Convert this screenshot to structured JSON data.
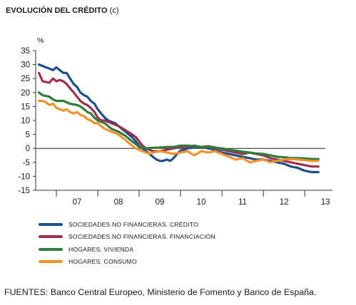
{
  "title": "EVOLUCIÓN DEL CRÉDITO",
  "title_note": "(c)",
  "source": "FUENTES: Banco Central Europeo, Ministerio de Fomento y Banco de España.",
  "chart_data": {
    "type": "line",
    "ylabel": "%",
    "ylim": [
      -15,
      35
    ],
    "yticks": [
      35,
      30,
      25,
      20,
      15,
      10,
      5,
      0,
      -5,
      -10,
      -15
    ],
    "xlim": [
      2006.5,
      2013.67
    ],
    "xtick_labels": [
      "07",
      "08",
      "09",
      "10",
      "11",
      "12",
      "13"
    ],
    "grid": false,
    "legend_position": "bottom",
    "series": [
      {
        "name": "SOCIEDADES NO FINANCIERAS. CRÉDITO",
        "color": "#1f4e8c",
        "points": [
          [
            2006.58,
            30
          ],
          [
            2006.75,
            29
          ],
          [
            2006.92,
            28
          ],
          [
            2007.0,
            29
          ],
          [
            2007.08,
            28
          ],
          [
            2007.17,
            27
          ],
          [
            2007.25,
            27
          ],
          [
            2007.33,
            25
          ],
          [
            2007.42,
            23
          ],
          [
            2007.5,
            22
          ],
          [
            2007.58,
            20
          ],
          [
            2007.67,
            19
          ],
          [
            2007.75,
            18.5
          ],
          [
            2007.83,
            17
          ],
          [
            2007.92,
            16
          ],
          [
            2008.0,
            14
          ],
          [
            2008.08,
            12.5
          ],
          [
            2008.17,
            11
          ],
          [
            2008.25,
            10
          ],
          [
            2008.33,
            9.5
          ],
          [
            2008.42,
            9
          ],
          [
            2008.5,
            8
          ],
          [
            2008.58,
            7
          ],
          [
            2008.67,
            6
          ],
          [
            2008.75,
            5
          ],
          [
            2008.83,
            4
          ],
          [
            2008.92,
            2.5
          ],
          [
            2009.0,
            1
          ],
          [
            2009.08,
            0
          ],
          [
            2009.17,
            -1
          ],
          [
            2009.25,
            -2
          ],
          [
            2009.33,
            -3
          ],
          [
            2009.42,
            -4
          ],
          [
            2009.5,
            -4.5
          ],
          [
            2009.58,
            -4.5
          ],
          [
            2009.67,
            -4
          ],
          [
            2009.75,
            -4.5
          ],
          [
            2009.83,
            -3.5
          ],
          [
            2009.92,
            -2
          ],
          [
            2010.0,
            -0.8
          ],
          [
            2010.17,
            0
          ],
          [
            2010.33,
            0.3
          ],
          [
            2010.5,
            0.5
          ],
          [
            2010.67,
            0
          ],
          [
            2010.83,
            -0.5
          ],
          [
            2011.0,
            -1.5
          ],
          [
            2011.17,
            -2
          ],
          [
            2011.33,
            -2.5
          ],
          [
            2011.5,
            -3
          ],
          [
            2011.67,
            -3.5
          ],
          [
            2011.83,
            -4
          ],
          [
            2012.0,
            -4
          ],
          [
            2012.17,
            -4.5
          ],
          [
            2012.33,
            -5
          ],
          [
            2012.5,
            -5.5
          ],
          [
            2012.67,
            -6.5
          ],
          [
            2012.83,
            -7
          ],
          [
            2013.0,
            -8
          ],
          [
            2013.17,
            -8.5
          ],
          [
            2013.33,
            -8.5
          ]
        ]
      },
      {
        "name": "SOCIEDADES NO FINANCIERAS. FINANCIACIÓN",
        "color": "#a0304a",
        "points": [
          [
            2006.58,
            27
          ],
          [
            2006.67,
            24
          ],
          [
            2006.83,
            23.5
          ],
          [
            2006.92,
            25
          ],
          [
            2007.0,
            24
          ],
          [
            2007.08,
            24.5
          ],
          [
            2007.17,
            24
          ],
          [
            2007.25,
            23
          ],
          [
            2007.33,
            21.5
          ],
          [
            2007.42,
            20
          ],
          [
            2007.5,
            18.5
          ],
          [
            2007.58,
            17
          ],
          [
            2007.67,
            16
          ],
          [
            2007.75,
            15.5
          ],
          [
            2007.83,
            14.5
          ],
          [
            2007.92,
            13
          ],
          [
            2008.0,
            11
          ],
          [
            2008.08,
            10
          ],
          [
            2008.17,
            10
          ],
          [
            2008.25,
            9.5
          ],
          [
            2008.33,
            9
          ],
          [
            2008.5,
            8
          ],
          [
            2008.67,
            6.5
          ],
          [
            2008.83,
            5
          ],
          [
            2008.92,
            4
          ],
          [
            2009.0,
            2.5
          ],
          [
            2009.08,
            1
          ],
          [
            2009.17,
            0
          ],
          [
            2009.25,
            -0.5
          ],
          [
            2009.33,
            -1
          ],
          [
            2009.5,
            -1
          ],
          [
            2009.67,
            -0.5
          ],
          [
            2009.83,
            0
          ],
          [
            2010.0,
            0.5
          ],
          [
            2010.17,
            0.5
          ],
          [
            2010.33,
            1
          ],
          [
            2010.5,
            0.5
          ],
          [
            2010.67,
            0.8
          ],
          [
            2010.83,
            0.3
          ],
          [
            2011.0,
            -0.5
          ],
          [
            2011.17,
            -1
          ],
          [
            2011.33,
            -1.5
          ],
          [
            2011.5,
            -2
          ],
          [
            2011.67,
            -1.5
          ],
          [
            2011.83,
            -2
          ],
          [
            2012.0,
            -2.5
          ],
          [
            2012.17,
            -3.5
          ],
          [
            2012.33,
            -4
          ],
          [
            2012.5,
            -4.5
          ],
          [
            2012.67,
            -5
          ],
          [
            2012.83,
            -5.5
          ],
          [
            2013.0,
            -6
          ],
          [
            2013.17,
            -6.5
          ],
          [
            2013.33,
            -6.5
          ]
        ]
      },
      {
        "name": "HOGARES. VIVIENDA",
        "color": "#2e7d3e",
        "points": [
          [
            2006.58,
            20
          ],
          [
            2006.67,
            19
          ],
          [
            2006.83,
            18.5
          ],
          [
            2006.92,
            17.5
          ],
          [
            2007.0,
            17
          ],
          [
            2007.17,
            17
          ],
          [
            2007.33,
            16
          ],
          [
            2007.5,
            15.5
          ],
          [
            2007.58,
            15
          ],
          [
            2007.67,
            14
          ],
          [
            2007.75,
            13
          ],
          [
            2007.83,
            12.5
          ],
          [
            2007.92,
            11
          ],
          [
            2008.0,
            10
          ],
          [
            2008.08,
            9.5
          ],
          [
            2008.17,
            9
          ],
          [
            2008.25,
            8
          ],
          [
            2008.33,
            7
          ],
          [
            2008.5,
            6
          ],
          [
            2008.67,
            4.5
          ],
          [
            2008.75,
            3.5
          ],
          [
            2008.83,
            2.5
          ],
          [
            2008.92,
            1.5
          ],
          [
            2009.0,
            0.5
          ],
          [
            2009.17,
            0
          ],
          [
            2009.33,
            0.2
          ],
          [
            2009.5,
            0.3
          ],
          [
            2009.67,
            0.5
          ],
          [
            2009.83,
            0.5
          ],
          [
            2010.0,
            1
          ],
          [
            2010.17,
            1
          ],
          [
            2010.33,
            0.8
          ],
          [
            2010.5,
            0.5
          ],
          [
            2010.67,
            0.5
          ],
          [
            2010.83,
            0.3
          ],
          [
            2011.0,
            0
          ],
          [
            2011.17,
            -0.5
          ],
          [
            2011.33,
            -0.8
          ],
          [
            2011.5,
            -1.2
          ],
          [
            2011.67,
            -1.5
          ],
          [
            2011.83,
            -1.8
          ],
          [
            2012.0,
            -2
          ],
          [
            2012.17,
            -2.5
          ],
          [
            2012.33,
            -3
          ],
          [
            2012.5,
            -3.2
          ],
          [
            2012.67,
            -3.5
          ],
          [
            2012.83,
            -3.5
          ],
          [
            2013.0,
            -3.6
          ],
          [
            2013.17,
            -3.8
          ],
          [
            2013.33,
            -3.8
          ]
        ]
      },
      {
        "name": "HOGARES. CONSUMO",
        "color": "#f0922a",
        "points": [
          [
            2006.58,
            17
          ],
          [
            2006.67,
            17
          ],
          [
            2006.75,
            16.5
          ],
          [
            2006.83,
            15.5
          ],
          [
            2006.92,
            16
          ],
          [
            2007.0,
            14.5
          ],
          [
            2007.08,
            14
          ],
          [
            2007.17,
            13.5
          ],
          [
            2007.25,
            14
          ],
          [
            2007.33,
            13
          ],
          [
            2007.42,
            12.5
          ],
          [
            2007.5,
            13
          ],
          [
            2007.58,
            12
          ],
          [
            2007.67,
            11.5
          ],
          [
            2007.75,
            10.5
          ],
          [
            2007.83,
            10
          ],
          [
            2007.92,
            9
          ],
          [
            2008.0,
            9
          ],
          [
            2008.08,
            8
          ],
          [
            2008.17,
            7
          ],
          [
            2008.25,
            6.5
          ],
          [
            2008.33,
            6
          ],
          [
            2008.42,
            5.5
          ],
          [
            2008.5,
            5
          ],
          [
            2008.58,
            4
          ],
          [
            2008.67,
            3
          ],
          [
            2008.75,
            2
          ],
          [
            2008.83,
            1
          ],
          [
            2008.92,
            0
          ],
          [
            2009.0,
            -0.5
          ],
          [
            2009.08,
            -1
          ],
          [
            2009.17,
            -1.5
          ],
          [
            2009.25,
            -2
          ],
          [
            2009.33,
            -1.5
          ],
          [
            2009.5,
            -1
          ],
          [
            2009.67,
            -1.5
          ],
          [
            2009.83,
            -2
          ],
          [
            2010.0,
            -1.5
          ],
          [
            2010.17,
            -1
          ],
          [
            2010.33,
            -2.5
          ],
          [
            2010.5,
            -1
          ],
          [
            2010.67,
            -1.5
          ],
          [
            2010.83,
            -1
          ],
          [
            2011.0,
            -2
          ],
          [
            2011.17,
            -3
          ],
          [
            2011.33,
            -4
          ],
          [
            2011.5,
            -3.5
          ],
          [
            2011.67,
            -5
          ],
          [
            2011.83,
            -4.5
          ],
          [
            2012.0,
            -4
          ],
          [
            2012.17,
            -5
          ],
          [
            2012.33,
            -4.5
          ],
          [
            2012.5,
            -4
          ],
          [
            2012.67,
            -3.8
          ],
          [
            2012.83,
            -4
          ],
          [
            2013.0,
            -4.2
          ],
          [
            2013.17,
            -4.5
          ],
          [
            2013.33,
            -4.5
          ]
        ]
      }
    ]
  }
}
